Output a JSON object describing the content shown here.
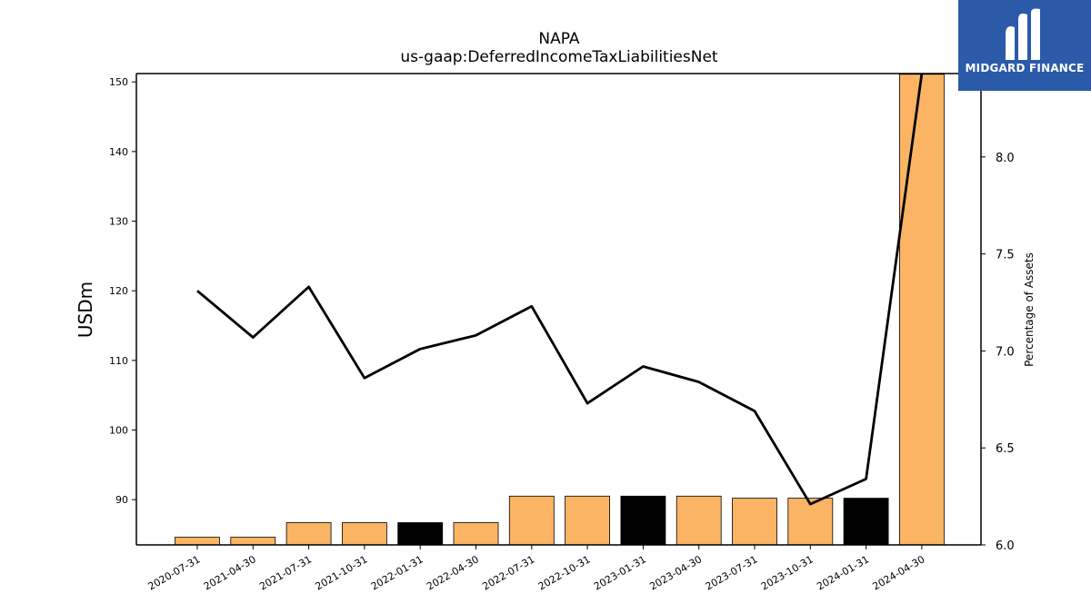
{
  "chart_data": {
    "type": "bar",
    "title": "NAPA",
    "subtitle": "us-gaap:DeferredIncomeTaxLiabilitiesNet",
    "ylabel": "USDm",
    "y2label": "Percentage of Assets",
    "categories": [
      "2020-07-31",
      "2021-04-30",
      "2021-07-31",
      "2021-10-31",
      "2022-01-31",
      "2022-04-30",
      "2022-07-31",
      "2022-10-31",
      "2023-01-31",
      "2023-04-30",
      "2023-07-31",
      "2023-10-31",
      "2024-01-31",
      "2024-04-30"
    ],
    "series": [
      {
        "type": "bar",
        "axis": "left",
        "values": [
          84.6,
          84.6,
          86.7,
          86.7,
          86.7,
          86.7,
          90.5,
          90.5,
          90.5,
          90.5,
          90.2,
          90.2,
          90.2,
          151.1
        ],
        "colors": [
          "#fbb464",
          "#fbb464",
          "#fbb464",
          "#fbb464",
          "#000000",
          "#fbb464",
          "#fbb464",
          "#fbb464",
          "#000000",
          "#fbb464",
          "#fbb464",
          "#fbb464",
          "#000000",
          "#fbb464"
        ]
      },
      {
        "type": "line",
        "axis": "right",
        "color": "#000000",
        "values": [
          7.31,
          7.07,
          7.33,
          6.86,
          7.01,
          7.08,
          7.23,
          6.73,
          6.92,
          6.84,
          6.69,
          6.21,
          6.34,
          8.43
        ]
      }
    ],
    "ylim": [
      83.5,
      151.2
    ],
    "y2lim": [
      6.0,
      8.43
    ],
    "yticks": [
      90,
      100,
      110,
      120,
      130,
      140,
      150
    ],
    "y2ticks": [
      "6.0",
      "6.5",
      "7.0",
      "7.5",
      "8.0"
    ],
    "grid": false,
    "legend": "none"
  },
  "logo": {
    "text": "MIDGARD FINANCE",
    "background": "#2b5aa8"
  }
}
